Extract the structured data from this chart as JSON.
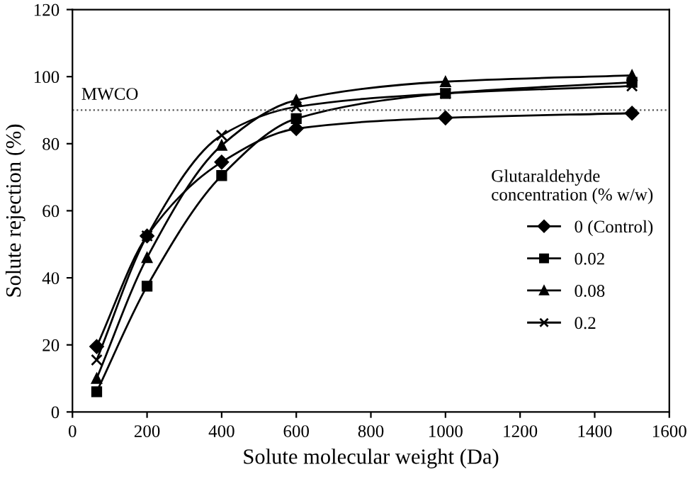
{
  "chart_data": {
    "type": "line",
    "xlabel": "Solute molecular weight (Da)",
    "ylabel": "Solute rejection (%)",
    "legend_title": "Glutaraldehyde\nconcentration (% w/w)",
    "legend": "right",
    "grid": false,
    "line_style": "solid",
    "xlim": [
      0,
      1600
    ],
    "xticks": [
      0,
      200,
      400,
      600,
      800,
      1000,
      1200,
      1400,
      1600
    ],
    "ylim": [
      0,
      120
    ],
    "yticks": [
      0,
      20,
      40,
      60,
      80,
      100,
      120
    ],
    "x": [
      65,
      200,
      400,
      600,
      1000,
      1500
    ],
    "series": [
      {
        "name": "0 (Control)",
        "color": "#000000",
        "marker": "diamond",
        "values": [
          19.5,
          52.5,
          74.5,
          84.5,
          87.7,
          89.1
        ]
      },
      {
        "name": "0.02",
        "color": "#000000",
        "marker": "square",
        "values": [
          6,
          37.5,
          70.5,
          87.5,
          95,
          98.3
        ]
      },
      {
        "name": "0.08",
        "color": "#000000",
        "marker": "triangle",
        "values": [
          10,
          46,
          79.5,
          93,
          98.5,
          100.4
        ]
      },
      {
        "name": "0.2",
        "color": "#000000",
        "marker": "cross",
        "values": [
          15.5,
          52.5,
          82.5,
          91,
          95,
          97.2
        ]
      }
    ],
    "ref_lines": [
      {
        "axis": "y",
        "value": 90,
        "label": "MWCO",
        "color": "#555555",
        "line_style": "dotted"
      }
    ]
  }
}
